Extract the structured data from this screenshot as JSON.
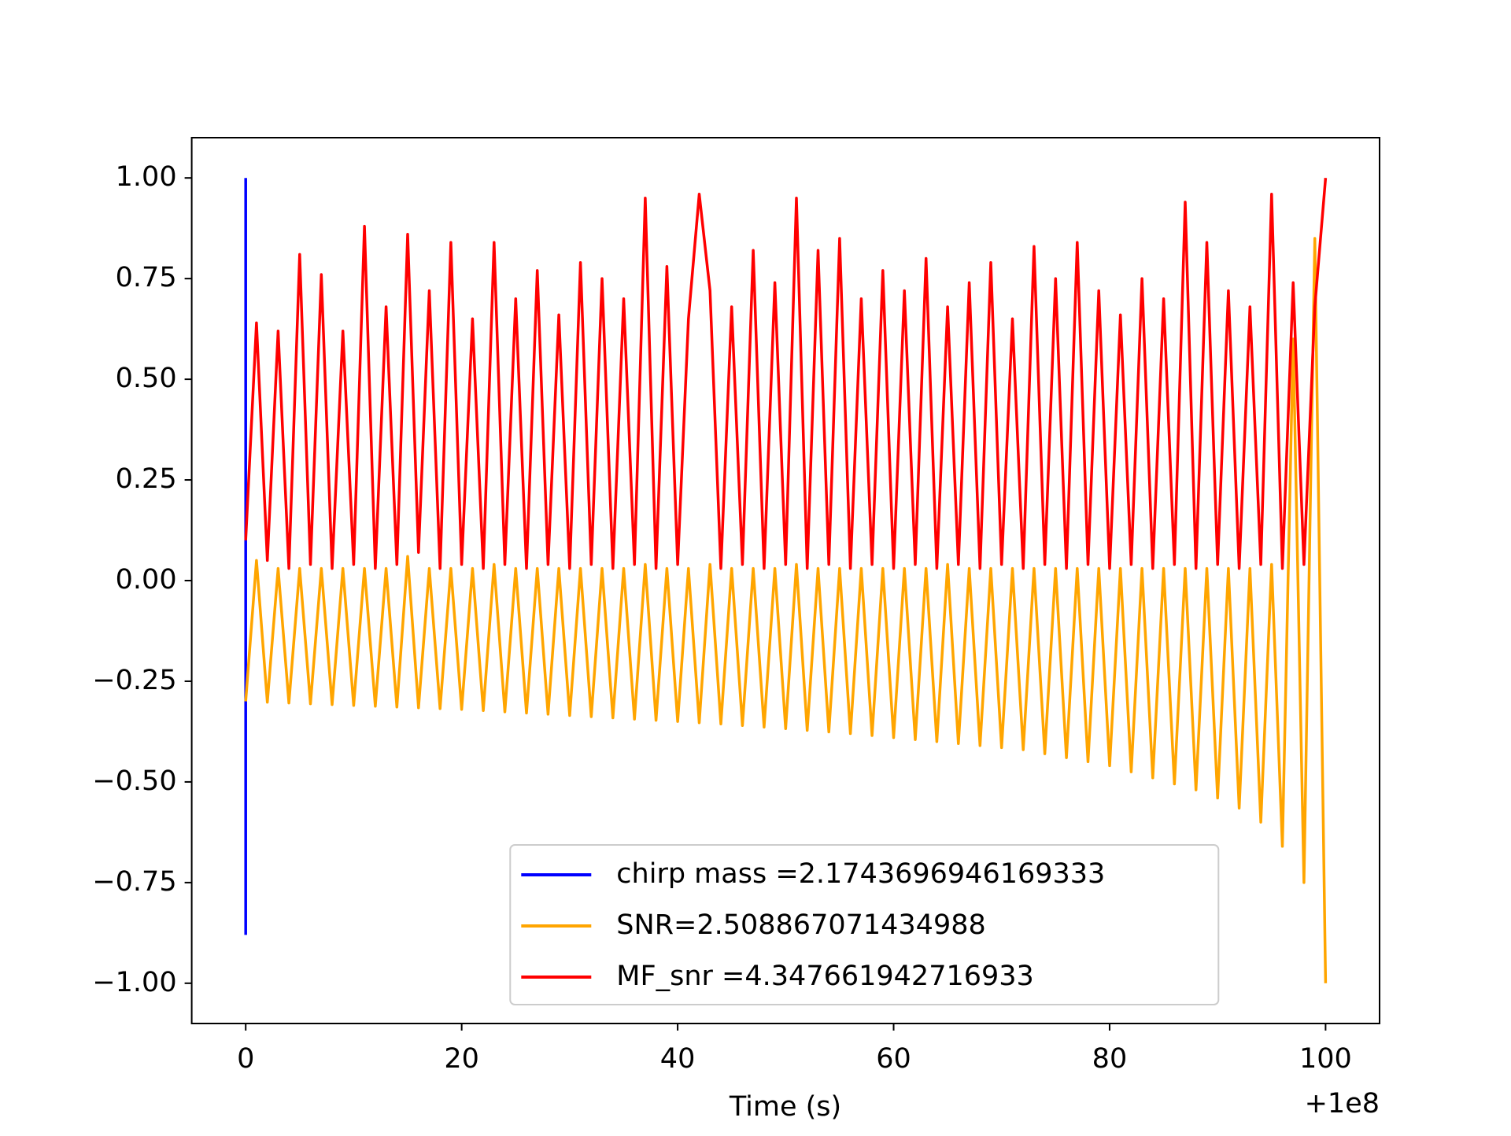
{
  "chart_data": {
    "type": "line",
    "x_label": "Time (s)",
    "x_offset_label": "+1e8",
    "xlim": [
      -5,
      105
    ],
    "ylim": [
      -1.1,
      1.1
    ],
    "xticks": [
      0,
      20,
      40,
      60,
      80,
      100
    ],
    "yticks": [
      {
        "value": 1.0,
        "label": "1.00"
      },
      {
        "value": 0.75,
        "label": "0.75"
      },
      {
        "value": 0.5,
        "label": "0.50"
      },
      {
        "value": 0.25,
        "label": "0.25"
      },
      {
        "value": 0.0,
        "label": "0.00"
      },
      {
        "value": -0.25,
        "label": "−0.25"
      },
      {
        "value": -0.5,
        "label": "−0.50"
      },
      {
        "value": -0.75,
        "label": "−0.75"
      },
      {
        "value": -1.0,
        "label": "−1.00"
      }
    ],
    "grid": false,
    "legend": "lower center",
    "x": [
      0,
      1,
      2,
      3,
      4,
      5,
      6,
      7,
      8,
      9,
      10,
      11,
      12,
      13,
      14,
      15,
      16,
      17,
      18,
      19,
      20,
      21,
      22,
      23,
      24,
      25,
      26,
      27,
      28,
      29,
      30,
      31,
      32,
      33,
      34,
      35,
      36,
      37,
      38,
      39,
      40,
      41,
      42,
      43,
      44,
      45,
      46,
      47,
      48,
      49,
      50,
      51,
      52,
      53,
      54,
      55,
      56,
      57,
      58,
      59,
      60,
      61,
      62,
      63,
      64,
      65,
      66,
      67,
      68,
      69,
      70,
      71,
      72,
      73,
      74,
      75,
      76,
      77,
      78,
      79,
      80,
      81,
      82,
      83,
      84,
      85,
      86,
      87,
      88,
      89,
      90,
      91,
      92,
      93,
      94,
      95,
      96,
      97,
      98,
      99,
      100
    ],
    "series": [
      {
        "name": "chirp mass =2.1743696946169333",
        "color": "#0000ff",
        "x": [
          0,
          0
        ],
        "values": [
          1.0,
          -0.88
        ]
      },
      {
        "name": "SNR=2.508867071434988",
        "color": "#ffa500",
        "values": [
          -0.3,
          0.05,
          -0.302,
          0.03,
          -0.304,
          0.03,
          -0.306,
          0.03,
          -0.308,
          0.03,
          -0.31,
          0.03,
          -0.312,
          0.03,
          -0.314,
          0.06,
          -0.316,
          0.03,
          -0.318,
          0.03,
          -0.32,
          0.03,
          -0.323,
          0.04,
          -0.326,
          0.03,
          -0.329,
          0.03,
          -0.332,
          0.03,
          -0.335,
          0.03,
          -0.338,
          0.03,
          -0.341,
          0.03,
          -0.344,
          0.04,
          -0.347,
          0.03,
          -0.35,
          0.03,
          -0.353,
          0.04,
          -0.356,
          0.03,
          -0.36,
          0.03,
          -0.364,
          0.03,
          -0.368,
          0.04,
          -0.372,
          0.03,
          -0.376,
          0.03,
          -0.38,
          0.03,
          -0.385,
          0.03,
          -0.39,
          0.03,
          -0.395,
          0.03,
          -0.4,
          0.04,
          -0.405,
          0.03,
          -0.41,
          0.03,
          -0.415,
          0.03,
          -0.42,
          0.03,
          -0.43,
          0.03,
          -0.44,
          0.03,
          -0.45,
          0.03,
          -0.46,
          0.03,
          -0.475,
          0.03,
          -0.49,
          0.03,
          -0.505,
          0.03,
          -0.52,
          0.03,
          -0.54,
          0.03,
          -0.565,
          0.03,
          -0.6,
          0.04,
          -0.66,
          0.6,
          -0.75,
          0.85,
          -1.0
        ]
      },
      {
        "name": "MF_snr =4.347661942716933",
        "color": "#ff0000",
        "values": [
          0.1,
          0.64,
          0.05,
          0.62,
          0.03,
          0.81,
          0.04,
          0.76,
          0.03,
          0.62,
          0.04,
          0.88,
          0.03,
          0.68,
          0.04,
          0.86,
          0.07,
          0.72,
          0.03,
          0.84,
          0.04,
          0.65,
          0.03,
          0.84,
          0.04,
          0.7,
          0.03,
          0.77,
          0.04,
          0.66,
          0.03,
          0.79,
          0.04,
          0.75,
          0.03,
          0.7,
          0.04,
          0.95,
          0.03,
          0.78,
          0.04,
          0.65,
          0.96,
          0.72,
          0.03,
          0.68,
          0.04,
          0.82,
          0.03,
          0.74,
          0.04,
          0.95,
          0.03,
          0.82,
          0.04,
          0.85,
          0.03,
          0.7,
          0.04,
          0.77,
          0.03,
          0.72,
          0.04,
          0.8,
          0.03,
          0.68,
          0.04,
          0.74,
          0.03,
          0.79,
          0.04,
          0.65,
          0.03,
          0.83,
          0.04,
          0.75,
          0.03,
          0.84,
          0.04,
          0.72,
          0.03,
          0.66,
          0.04,
          0.75,
          0.03,
          0.7,
          0.04,
          0.94,
          0.03,
          0.84,
          0.04,
          0.72,
          0.03,
          0.68,
          0.04,
          0.96,
          0.03,
          0.74,
          0.04,
          0.68,
          1.0
        ]
      }
    ]
  }
}
